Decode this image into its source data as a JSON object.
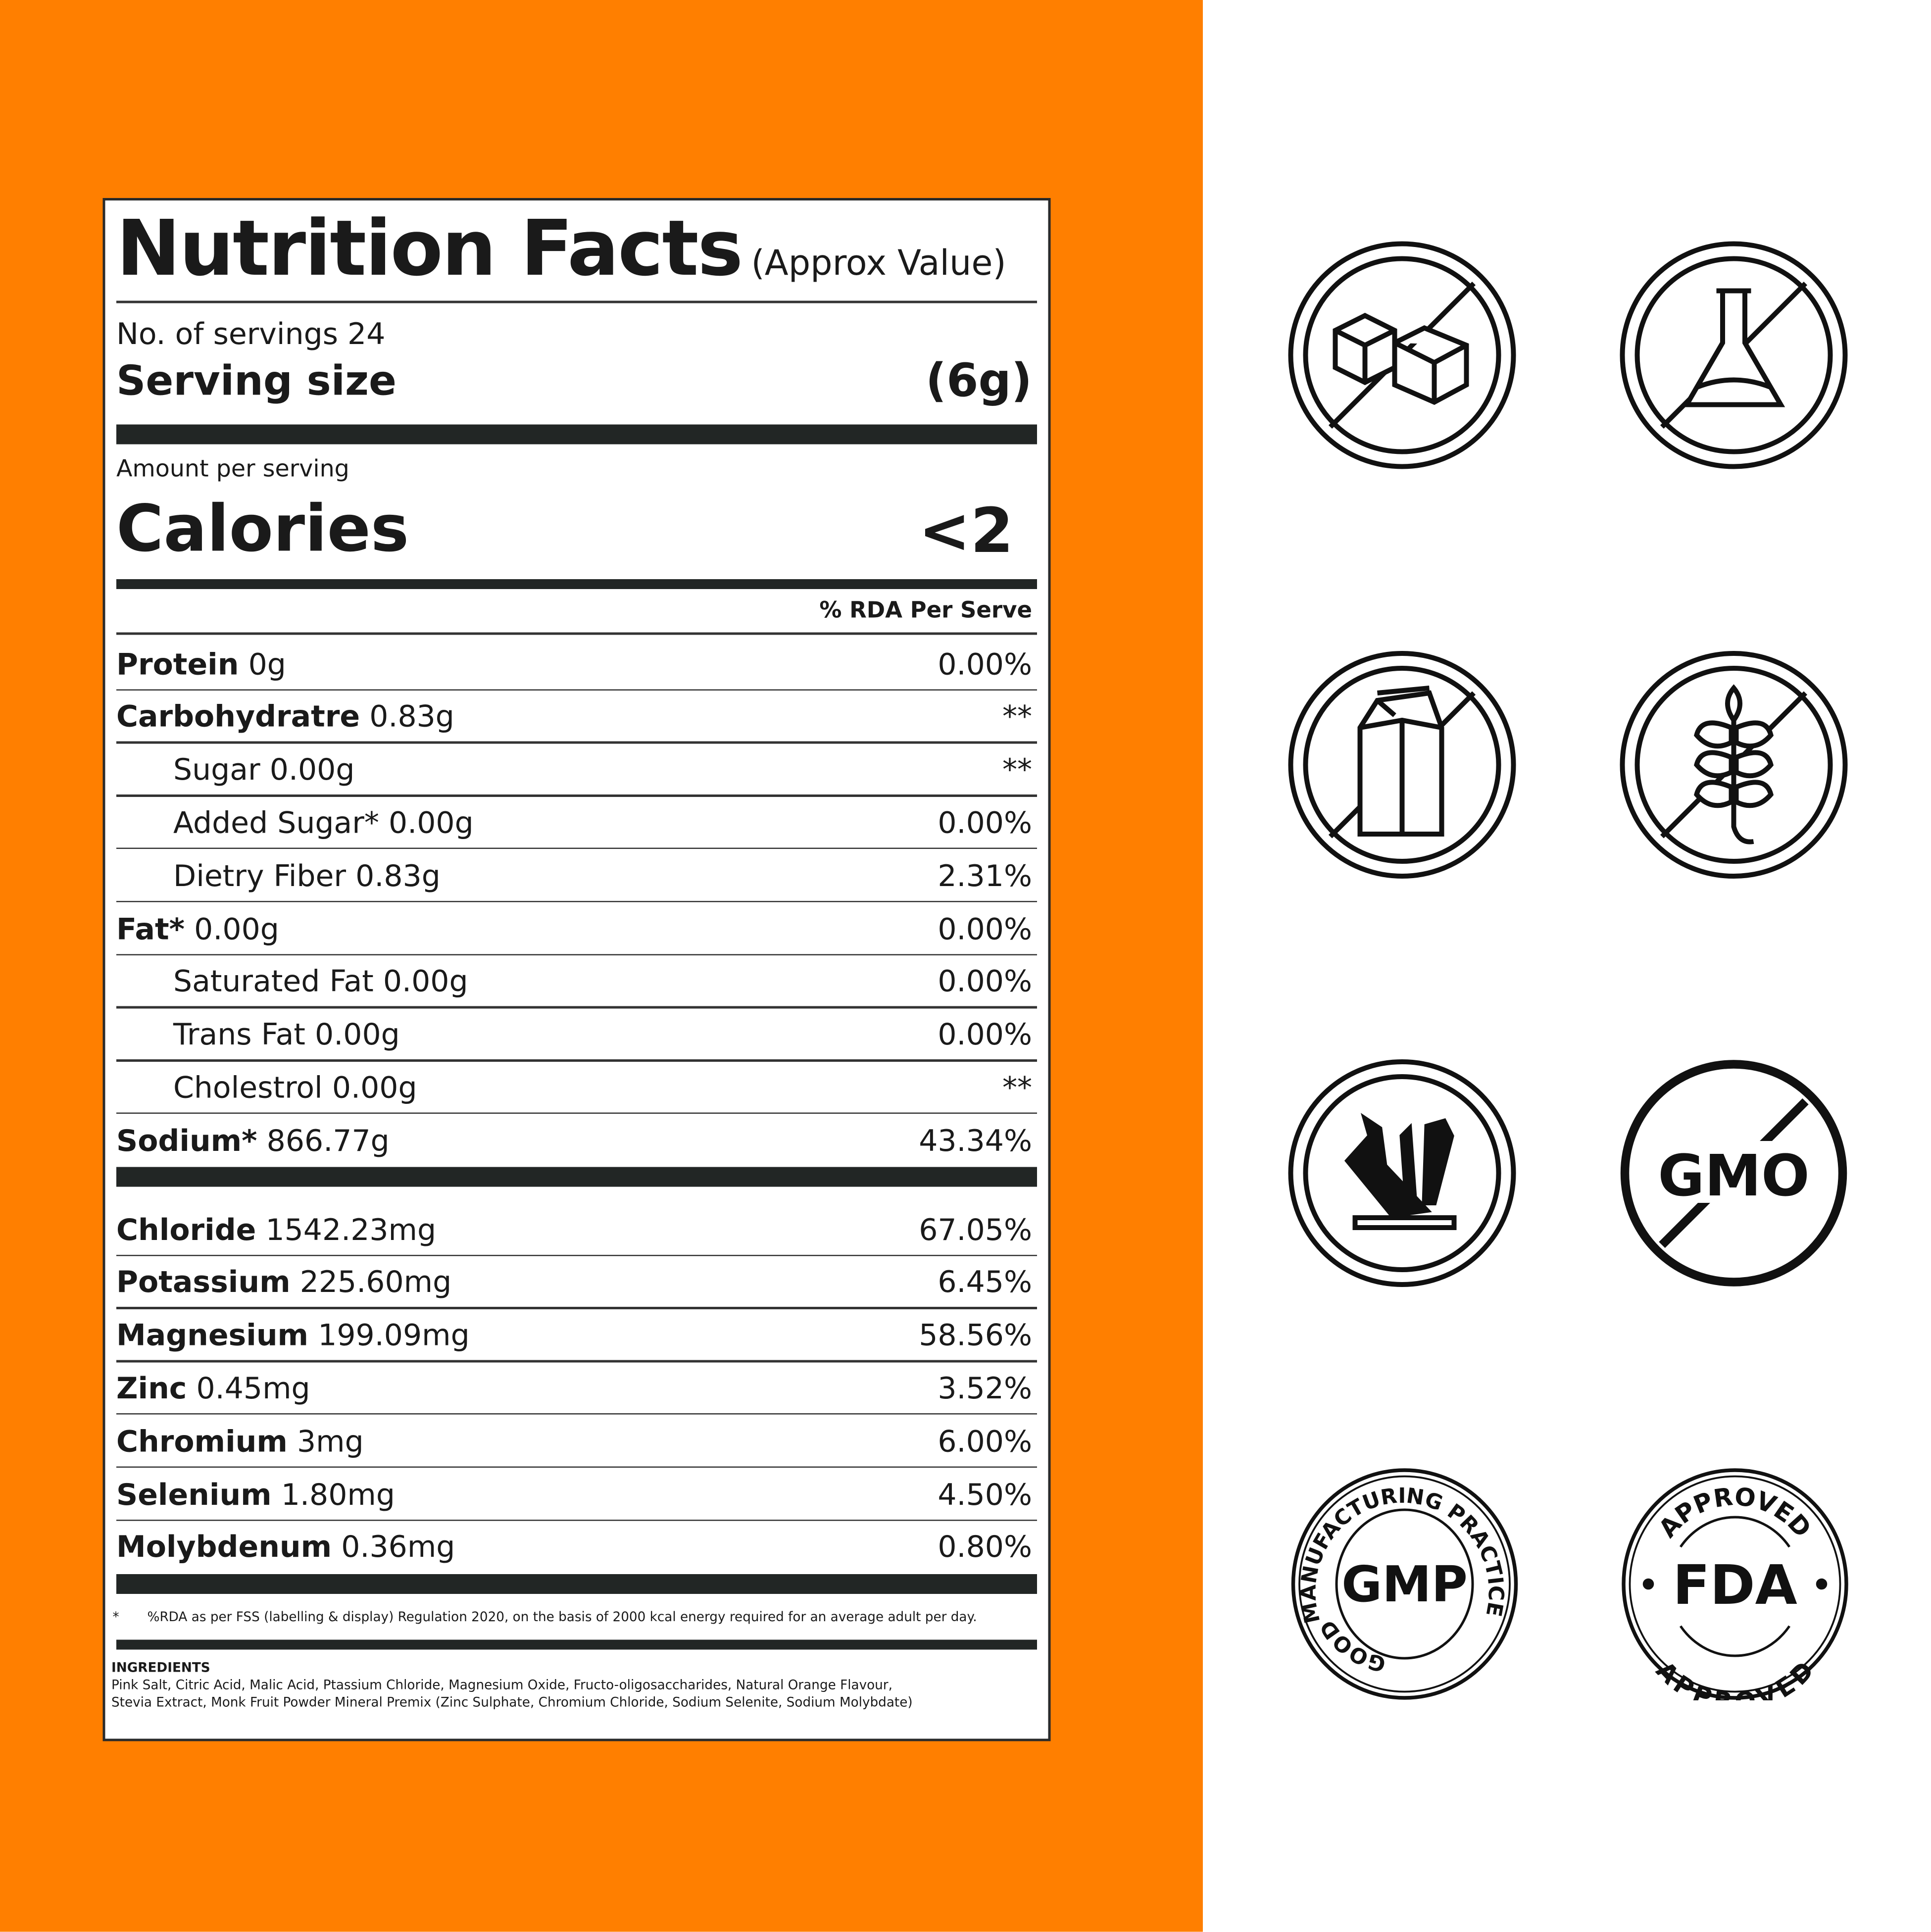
{
  "colors": {
    "orange": "#FF7F00",
    "ink": "#1a1a1a",
    "bar": "#222625"
  },
  "label": {
    "title": "Nutrition Facts",
    "title_note": "(Approx Value)",
    "servings": "No. of servings 24",
    "serving_size_label": "Serving size",
    "serving_size_value": "(6g)",
    "amount_per_serving": "Amount per serving",
    "calories_label": "Calories",
    "calories_value": "<2",
    "rda_header": "% RDA Per Serve",
    "nutrients": [
      {
        "name": "Protein",
        "amount": "0g",
        "rda": "0.00%",
        "bold": true,
        "indent": false
      },
      {
        "name": "Carbohydratre",
        "amount": "0.83g",
        "rda": "**",
        "bold": true,
        "indent": false
      },
      {
        "name": "Sugar",
        "amount": "0.00g",
        "rda": "**",
        "bold": false,
        "indent": true
      },
      {
        "name": "Added Sugar*",
        "amount": "0.00g",
        "rda": "0.00%",
        "bold": false,
        "indent": true
      },
      {
        "name": "Dietry Fiber",
        "amount": "0.83g",
        "rda": "2.31%",
        "bold": false,
        "indent": true
      },
      {
        "name": "Fat*",
        "amount": "0.00g",
        "rda": "0.00%",
        "bold": true,
        "indent": false
      },
      {
        "name": "Saturated Fat",
        "amount": "0.00g",
        "rda": "0.00%",
        "bold": false,
        "indent": true
      },
      {
        "name": "Trans Fat",
        "amount": "0.00g",
        "rda": "0.00%",
        "bold": false,
        "indent": true
      },
      {
        "name": "Cholestrol",
        "amount": "0.00g",
        "rda": "**",
        "bold": false,
        "indent": true
      },
      {
        "name": "Sodium*",
        "amount": "866.77g",
        "rda": "43.34%",
        "bold": true,
        "indent": false
      }
    ],
    "minerals": [
      {
        "name": "Chloride",
        "amount": "1542.23mg",
        "rda": "67.05%"
      },
      {
        "name": "Potassium",
        "amount": "225.60mg",
        "rda": "6.45%"
      },
      {
        "name": "Magnesium",
        "amount": "199.09mg",
        "rda": "58.56%"
      },
      {
        "name": "Zinc",
        "amount": "0.45mg",
        "rda": "3.52%"
      },
      {
        "name": "Chromium",
        "amount": "3mg",
        "rda": "6.00%"
      },
      {
        "name": "Selenium",
        "amount": "1.80mg",
        "rda": "4.50%"
      },
      {
        "name": "Molybdenum",
        "amount": "0.36mg",
        "rda": "0.80%"
      }
    ],
    "footnote_mark": "*",
    "footnote": "%RDA as per FSS (labelling & display) Regulation 2020, on the basis of 2000 kcal energy required for an average adult per day.",
    "ingredients_title": "INGREDIENTS",
    "ingredients_line1": "Pink Salt, Citric Acid, Malic Acid, Ptassium Chloride, Magnesium Oxide, Fructo-oligosaccharides, Natural Orange Flavour,",
    "ingredients_line2": "Stevia Extract, Monk Fruit Powder Mineral Premix (Zinc Sulphate, Chromium Chloride, Sodium Selenite, Sodium Molybdate)"
  },
  "badges": [
    {
      "icon": "no-sugar-icon"
    },
    {
      "icon": "no-chemicals-icon"
    },
    {
      "icon": "no-dairy-icon"
    },
    {
      "icon": "gluten-free-icon"
    },
    {
      "icon": "minerals-icon"
    },
    {
      "icon": "non-gmo-icon",
      "text": "GMO"
    },
    {
      "icon": "gmp-badge-icon",
      "text": "GMP",
      "ring_top": "MANUFACTURING PRACTICE",
      "ring_bottom": "GOOD"
    },
    {
      "icon": "fda-approved-icon",
      "text": "FDA",
      "ring_top": "APPROVED",
      "ring_bottom": "APPROVED"
    }
  ]
}
